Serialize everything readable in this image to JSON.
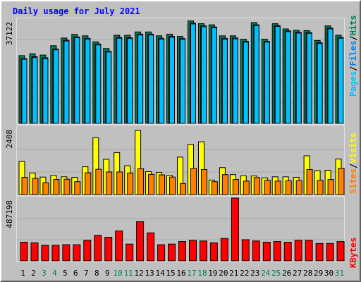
{
  "title": "Daily usage for July 2021",
  "colors": {
    "hits": "#00805c",
    "files": "#0080ff",
    "pages": "#00c0ff",
    "visits": "#ffff00",
    "sites": "#ff8000",
    "kbytes": "#ff0000",
    "day_normal": "#000000",
    "day_weekend": "#00805c",
    "separator": "#000000"
  },
  "chart_data": [
    {
      "type": "bar",
      "title": "",
      "ymax_label": "37122",
      "ymax": 37122,
      "legend": [
        "Pages",
        "Files",
        "Hits"
      ],
      "categories": [
        "1",
        "2",
        "3",
        "4",
        "5",
        "6",
        "7",
        "8",
        "9",
        "10",
        "11",
        "12",
        "13",
        "14",
        "15",
        "16",
        "17",
        "18",
        "19",
        "20",
        "21",
        "22",
        "23",
        "24",
        "25",
        "26",
        "27",
        "28",
        "29",
        "30",
        "31"
      ],
      "series": [
        {
          "name": "Hits",
          "values": [
            24600,
            25300,
            24800,
            28200,
            31000,
            32300,
            31800,
            29600,
            27200,
            32000,
            32000,
            33200,
            33200,
            31800,
            32400,
            31600,
            37200,
            36200,
            35800,
            31800,
            31800,
            30600,
            36600,
            30600,
            36200,
            34300,
            33800,
            33700,
            30100,
            35400,
            32000
          ]
        },
        {
          "name": "Files",
          "values": [
            23500,
            24200,
            23800,
            27000,
            30200,
            31400,
            30900,
            28800,
            26200,
            31200,
            31100,
            32400,
            32400,
            30900,
            31600,
            30800,
            36400,
            35400,
            35000,
            30900,
            31000,
            29800,
            35800,
            29800,
            35500,
            33600,
            33100,
            33000,
            29300,
            34600,
            31200
          ]
        },
        {
          "name": "Pages",
          "values": [
            23300,
            23900,
            23500,
            26700,
            29900,
            31100,
            30600,
            28500,
            25900,
            30900,
            30800,
            32100,
            32100,
            30600,
            31300,
            30500,
            36100,
            35100,
            34700,
            30600,
            30700,
            29500,
            35500,
            29500,
            35200,
            33300,
            32800,
            32700,
            29000,
            34300,
            30900
          ]
        }
      ]
    },
    {
      "type": "bar",
      "title": "",
      "ymax_label": "2408",
      "ymax": 2408,
      "legend": [
        "Sites",
        "Visits"
      ],
      "categories": [
        "1",
        "2",
        "3",
        "4",
        "5",
        "6",
        "7",
        "8",
        "9",
        "10",
        "11",
        "12",
        "13",
        "14",
        "15",
        "16",
        "17",
        "18",
        "19",
        "20",
        "21",
        "22",
        "23",
        "24",
        "25",
        "26",
        "27",
        "28",
        "29",
        "30",
        "31"
      ],
      "series": [
        {
          "name": "Visits",
          "values": [
            1230,
            800,
            650,
            710,
            660,
            640,
            1030,
            2110,
            1310,
            1560,
            1070,
            2380,
            850,
            820,
            710,
            1390,
            1860,
            1960,
            540,
            1000,
            740,
            700,
            690,
            620,
            660,
            660,
            640,
            1440,
            890,
            900,
            1320
          ]
        },
        {
          "name": "Sites",
          "values": [
            640,
            600,
            440,
            560,
            570,
            480,
            810,
            940,
            840,
            840,
            800,
            960,
            750,
            730,
            650,
            410,
            970,
            930,
            480,
            740,
            560,
            500,
            630,
            530,
            500,
            510,
            520,
            930,
            530,
            560,
            980
          ]
        }
      ]
    },
    {
      "type": "bar",
      "title": "",
      "ymax_label": "487198",
      "ymax": 487198,
      "legend": [
        "KBytes"
      ],
      "categories": [
        "1",
        "2",
        "3",
        "4",
        "5",
        "6",
        "7",
        "8",
        "9",
        "10",
        "11",
        "12",
        "13",
        "14",
        "15",
        "16",
        "17",
        "18",
        "19",
        "20",
        "21",
        "22",
        "23",
        "24",
        "25",
        "26",
        "27",
        "28",
        "29",
        "30",
        "31"
      ],
      "series": [
        {
          "name": "KBytes",
          "values": [
            150000,
            145000,
            125000,
            125000,
            130000,
            130000,
            165000,
            205000,
            190000,
            240000,
            135000,
            315000,
            225000,
            130000,
            135000,
            155000,
            165000,
            160000,
            145000,
            180000,
            505000,
            170000,
            160000,
            150000,
            155000,
            150000,
            165000,
            165000,
            140000,
            140000,
            155000
          ]
        }
      ]
    }
  ]
}
